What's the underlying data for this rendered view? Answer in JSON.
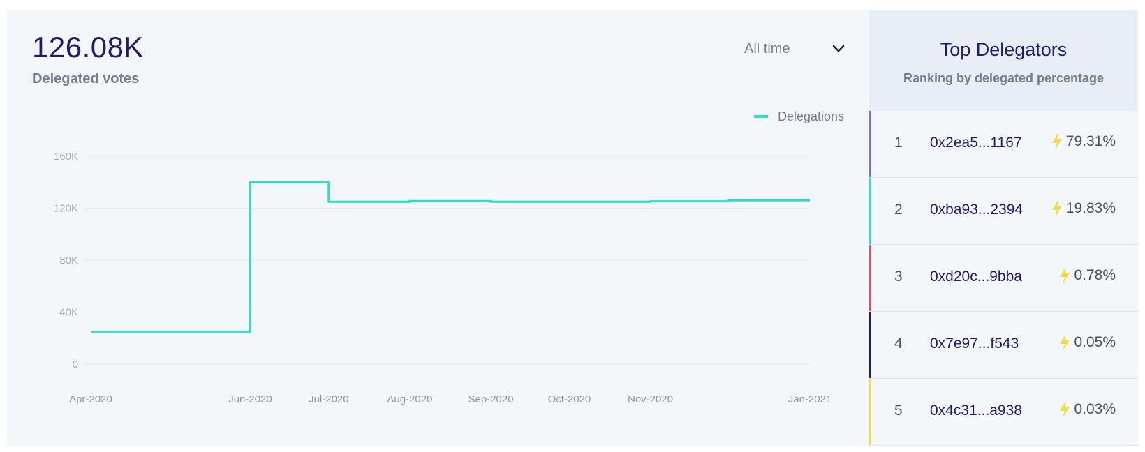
{
  "summary": {
    "value": "126.08K",
    "label": "Delegated votes"
  },
  "range_selector": {
    "selected": "All time",
    "icon": "chevron-down-icon"
  },
  "legend": {
    "label": "Delegations",
    "color": "#2dddcc"
  },
  "chart_data": {
    "type": "line",
    "step": true,
    "x_ticks": [
      "Apr-2020",
      "Jun-2020",
      "Jul-2020",
      "Aug-2020",
      "Sep-2020",
      "Oct-2020",
      "Nov-2020",
      "Jan-2021"
    ],
    "y_ticks": [
      "0",
      "40K",
      "80K",
      "120K",
      "160K"
    ],
    "ylim": [
      0,
      160000
    ],
    "grid": true,
    "legend_position": "top-right",
    "series": [
      {
        "name": "Delegations",
        "color": "#2dddcc",
        "points": [
          {
            "x": "2020-04-01",
            "y": 25000
          },
          {
            "x": "2020-06-01",
            "y": 25000
          },
          {
            "x": "2020-06-01",
            "y": 140000
          },
          {
            "x": "2020-07-01",
            "y": 140000
          },
          {
            "x": "2020-07-01",
            "y": 125000
          },
          {
            "x": "2020-08-01",
            "y": 125000
          },
          {
            "x": "2020-08-01",
            "y": 125500
          },
          {
            "x": "2020-09-01",
            "y": 125500
          },
          {
            "x": "2020-09-01",
            "y": 125000
          },
          {
            "x": "2020-11-01",
            "y": 125000
          },
          {
            "x": "2020-11-01",
            "y": 125300
          },
          {
            "x": "2020-12-01",
            "y": 125300
          },
          {
            "x": "2020-12-01",
            "y": 126080
          },
          {
            "x": "2021-01-01",
            "y": 126080
          }
        ]
      }
    ]
  },
  "top_delegators": {
    "title": "Top Delegators",
    "subtitle": "Ranking by delegated percentage",
    "rows": [
      {
        "rank": "1",
        "address": "0x2ea5...1167",
        "percent": "79.31%",
        "color": "#7b6fd6"
      },
      {
        "rank": "2",
        "address": "0xba93...2394",
        "percent": "19.83%",
        "color": "#2dddcc"
      },
      {
        "rank": "3",
        "address": "0xd20c...9bba",
        "percent": "0.78%",
        "color": "#f0455c"
      },
      {
        "rank": "4",
        "address": "0x7e97...f543",
        "percent": "0.05%",
        "color": "#1c1d6b"
      },
      {
        "rank": "5",
        "address": "0x4c31...a938",
        "percent": "0.03%",
        "color": "#f6d84b"
      }
    ],
    "bolt_color": "#f6d84b",
    "icon": "lightning-bolt-icon"
  }
}
